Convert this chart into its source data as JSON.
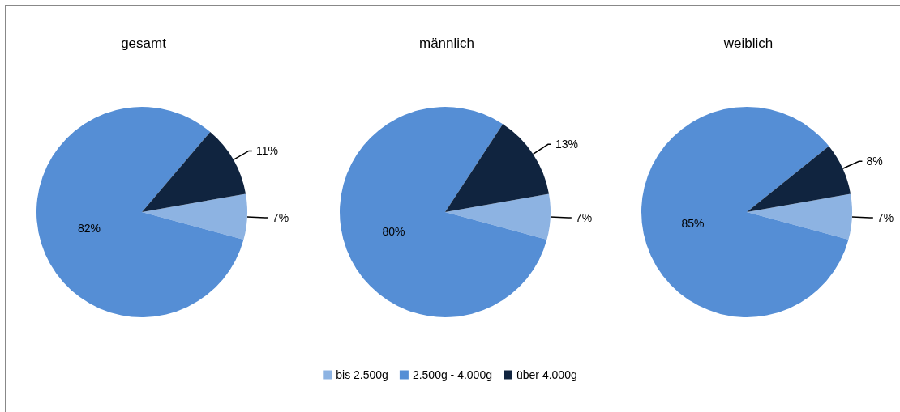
{
  "chart_data": [
    {
      "type": "pie",
      "title": "gesamt",
      "categories": [
        "bis 2.500g",
        "2.500g - 4.000g",
        "über 4.000g"
      ],
      "values": [
        7,
        82,
        11
      ],
      "value_labels": [
        "7%",
        "82%",
        "11%"
      ],
      "colors": [
        "#8db3e2",
        "#558ed5",
        "#10243f"
      ],
      "legend": "bottom"
    },
    {
      "type": "pie",
      "title": "männlich",
      "categories": [
        null,
        null,
        null
      ],
      "values": [
        7,
        80,
        13
      ],
      "value_labels": [
        "7%",
        "80%",
        "13%"
      ],
      "colors": [
        "#8db3e2",
        "#558ed5",
        "#10243f"
      ]
    },
    {
      "type": "pie",
      "title": "weiblich",
      "categories": [
        null,
        null,
        null
      ],
      "values": [
        7,
        85,
        8
      ],
      "value_labels": [
        "7%",
        "85%",
        "8%"
      ],
      "colors": [
        "#8db3e2",
        "#558ed5",
        "#10243f"
      ]
    }
  ]
}
